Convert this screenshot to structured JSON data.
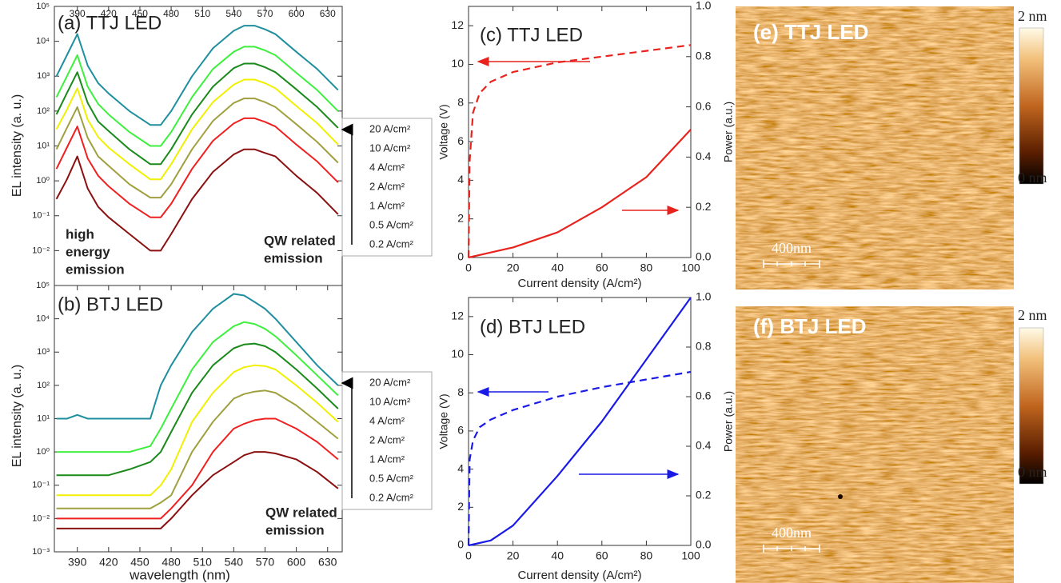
{
  "chart_data": [
    {
      "type": "line",
      "title": "(a) TTJ LED",
      "y_label": "EL intensity (a. u.)",
      "log_y": true,
      "x": [
        370,
        380,
        390,
        400,
        410,
        420,
        440,
        460,
        470,
        480,
        500,
        520,
        540,
        550,
        560,
        570,
        580,
        600,
        620,
        640
      ],
      "xlim": [
        368,
        644
      ],
      "xticks": [
        390,
        420,
        450,
        480,
        510,
        540,
        570,
        600,
        630
      ],
      "ylim": [
        0.001,
        100000
      ],
      "yticks": [
        {
          "value": 100000,
          "label": "10⁵"
        },
        {
          "value": 10000,
          "label": "10⁴"
        },
        {
          "value": 1000,
          "label": "10³"
        },
        {
          "value": 100,
          "label": "10²"
        },
        {
          "value": 10,
          "label": "10¹"
        },
        {
          "value": 1,
          "label": "10⁰"
        },
        {
          "value": 0.1,
          "label": "10⁻¹"
        },
        {
          "value": 0.01,
          "label": "10⁻²"
        }
      ],
      "annotations": [
        {
          "lines": [
            "high",
            "energy",
            "emission"
          ]
        },
        {
          "lines": [
            "QW related",
            "emission"
          ]
        }
      ],
      "series": [
        {
          "name": "20 A/cm²",
          "color": "#1f8f9f",
          "values": [
            1000,
            4000,
            16000,
            2000,
            630,
            320,
            100,
            40,
            40,
            100,
            1000,
            6300,
            20000,
            28000,
            28000,
            22000,
            16000,
            5000,
            1600,
            400
          ]
        },
        {
          "name": "10 A/cm²",
          "color": "#3ef03e",
          "values": [
            250,
            1000,
            4000,
            500,
            160,
            80,
            25,
            10,
            10,
            25,
            250,
            1600,
            5000,
            7000,
            7000,
            5500,
            4000,
            1250,
            400,
            100
          ]
        },
        {
          "name": "4 A/cm²",
          "color": "#1a8a1a",
          "values": [
            80,
            330,
            1300,
            170,
            50,
            27,
            8,
            3,
            3,
            8,
            80,
            500,
            1700,
            2300,
            2300,
            1800,
            1300,
            420,
            130,
            33
          ]
        },
        {
          "name": "2 A/cm²",
          "color": "#f0f000",
          "values": [
            30,
            110,
            450,
            57,
            18,
            9,
            3,
            1.1,
            1.1,
            3,
            30,
            180,
            570,
            800,
            800,
            630,
            450,
            140,
            45,
            11
          ]
        },
        {
          "name": "1 A/cm²",
          "color": "#a0a040",
          "values": [
            8,
            33,
            130,
            17,
            5,
            2.7,
            0.8,
            0.33,
            0.33,
            0.8,
            8,
            52,
            170,
            230,
            230,
            180,
            130,
            42,
            13,
            3.3
          ]
        },
        {
          "name": "0.5 A/cm²",
          "color": "#f02020",
          "values": [
            2.2,
            9,
            36,
            4.4,
            1.4,
            0.7,
            0.22,
            0.09,
            0.09,
            0.22,
            2.2,
            14,
            44,
            62,
            62,
            49,
            36,
            11,
            3.6,
            0.9
          ]
        },
        {
          "name": "0.2 A/cm²",
          "color": "#8b1010",
          "values": [
            0.3,
            1.1,
            5,
            0.6,
            0.18,
            0.09,
            0.03,
            0.01,
            0.01,
            0.03,
            0.3,
            1.8,
            5.7,
            8,
            8,
            6.3,
            5,
            1.4,
            0.45,
            0.11
          ]
        }
      ]
    },
    {
      "type": "line",
      "title": "(b) BTJ LED",
      "y_label": "EL intensity (a. u.)",
      "x_label": "wavelength (nm)",
      "log_y": true,
      "x": [
        370,
        380,
        390,
        400,
        410,
        420,
        440,
        460,
        470,
        480,
        500,
        520,
        540,
        550,
        560,
        570,
        580,
        600,
        620,
        640
      ],
      "xlim": [
        368,
        644
      ],
      "xticks": [
        390,
        420,
        450,
        480,
        510,
        540,
        570,
        600,
        630
      ],
      "ylim": [
        0.001,
        100000
      ],
      "yticks": [
        {
          "value": 100000,
          "label": "10⁵"
        },
        {
          "value": 10000,
          "label": "10⁴"
        },
        {
          "value": 1000,
          "label": "10³"
        },
        {
          "value": 100,
          "label": "10²"
        },
        {
          "value": 10,
          "label": "10¹"
        },
        {
          "value": 1,
          "label": "10⁰"
        },
        {
          "value": 0.1,
          "label": "10⁻¹"
        },
        {
          "value": 0.01,
          "label": "10⁻²"
        },
        {
          "value": 0.001,
          "label": "10⁻³"
        }
      ],
      "annotations": [
        {
          "lines": [
            "QW related",
            "emission"
          ]
        }
      ],
      "series": [
        {
          "name": "20 A/cm²",
          "color": "#1f8f9f",
          "values": [
            10,
            10,
            13,
            10,
            10,
            10,
            10,
            10,
            100,
            400,
            4000,
            20000,
            56000,
            50000,
            32000,
            20000,
            10000,
            2000,
            400,
            100
          ]
        },
        {
          "name": "10 A/cm²",
          "color": "#3ef03e",
          "values": [
            1,
            1,
            1,
            1,
            1,
            1,
            1,
            1.5,
            5,
            20,
            300,
            2000,
            6000,
            8000,
            7000,
            5000,
            3000,
            800,
            200,
            50
          ]
        },
        {
          "name": "4 A/cm²",
          "color": "#1a8a1a",
          "values": [
            0.2,
            0.2,
            0.2,
            0.2,
            0.2,
            0.2,
            0.3,
            0.5,
            1,
            4,
            60,
            400,
            1300,
            1700,
            1800,
            1500,
            1000,
            300,
            80,
            20
          ]
        },
        {
          "name": "2 A/cm²",
          "color": "#f0f000",
          "values": [
            0.05,
            0.05,
            0.05,
            0.05,
            0.05,
            0.05,
            0.05,
            0.05,
            0.1,
            0.3,
            8,
            60,
            250,
            350,
            400,
            380,
            300,
            100,
            30,
            8
          ]
        },
        {
          "name": "1 A/cm²",
          "color": "#a0a040",
          "values": [
            0.02,
            0.02,
            0.02,
            0.02,
            0.02,
            0.02,
            0.02,
            0.02,
            0.03,
            0.05,
            1,
            8,
            40,
            55,
            65,
            70,
            60,
            25,
            8,
            2.5
          ]
        },
        {
          "name": "0.5 A/cm²",
          "color": "#f02020",
          "values": [
            0.01,
            0.01,
            0.01,
            0.01,
            0.01,
            0.01,
            0.01,
            0.01,
            0.01,
            0.02,
            0.1,
            1,
            5,
            7,
            9,
            10,
            10,
            5,
            2,
            0.6
          ]
        },
        {
          "name": "0.2 A/cm²",
          "color": "#8b1010",
          "values": [
            0.005,
            0.005,
            0.005,
            0.005,
            0.005,
            0.005,
            0.005,
            0.005,
            0.005,
            0.01,
            0.05,
            0.2,
            0.5,
            0.8,
            1,
            1,
            0.9,
            0.6,
            0.25,
            0.08
          ]
        }
      ]
    },
    {
      "type": "line",
      "title": "(c) TTJ LED",
      "x_label": "Current density (A/cm²)",
      "y_label": "Voltage (V)",
      "y2_label": "Power (a.u.)",
      "xlim": [
        0,
        100
      ],
      "xticks": [
        0,
        20,
        40,
        60,
        80,
        100
      ],
      "ylim": [
        0,
        13
      ],
      "yticks": [
        0,
        2,
        4,
        6,
        8,
        10,
        12
      ],
      "y2lim": [
        0,
        1
      ],
      "y2ticks": [
        {
          "value": 0,
          "label": "0.0"
        },
        {
          "value": 0.2,
          "label": "0.2"
        },
        {
          "value": 0.4,
          "label": "0.4"
        },
        {
          "value": 0.6,
          "label": "0.6"
        },
        {
          "value": 0.8,
          "label": "0.8"
        },
        {
          "value": 1,
          "label": "1.0"
        }
      ],
      "series": [
        {
          "color": "#e8231e",
          "line_style": "dashed",
          "x": [
            0,
            0.5,
            2,
            5,
            10,
            20,
            40,
            60,
            80,
            100
          ],
          "values": [
            0,
            5,
            7.5,
            8.5,
            9.1,
            9.6,
            10.1,
            10.4,
            10.7,
            11
          ]
        },
        {
          "color": "#e8231e",
          "line_style": "solid",
          "axis": "y2",
          "x": [
            0,
            10,
            20,
            40,
            60,
            80,
            100
          ],
          "values": [
            0,
            0.02,
            0.04,
            0.1,
            0.2,
            0.32,
            0.51
          ]
        }
      ]
    },
    {
      "type": "line",
      "title": "(d) BTJ LED",
      "x_label": "Current density (A/cm²)",
      "y_label": "Voltage (V)",
      "y2_label": "Power (a.u.)",
      "xlim": [
        0,
        100
      ],
      "xticks": [
        0,
        20,
        40,
        60,
        80,
        100
      ],
      "ylim": [
        0,
        13
      ],
      "yticks": [
        0,
        2,
        4,
        6,
        8,
        10,
        12
      ],
      "y2lim": [
        0,
        1
      ],
      "y2ticks": [
        {
          "value": 0,
          "label": "0.0"
        },
        {
          "value": 0.2,
          "label": "0.2"
        },
        {
          "value": 0.4,
          "label": "0.4"
        },
        {
          "value": 0.6,
          "label": "0.6"
        },
        {
          "value": 0.8,
          "label": "0.8"
        },
        {
          "value": 1,
          "label": "1.0"
        }
      ],
      "series": [
        {
          "color": "#1a1ae6",
          "line_style": "dashed",
          "x": [
            0,
            0.5,
            2,
            5,
            10,
            20,
            40,
            60,
            80,
            100
          ],
          "values": [
            0,
            4.5,
            5.5,
            6.2,
            6.6,
            7.1,
            7.8,
            8.3,
            8.7,
            9.1
          ]
        },
        {
          "color": "#1a1ae6",
          "line_style": "solid",
          "axis": "y2",
          "x": [
            0,
            10,
            20,
            40,
            60,
            80,
            100
          ],
          "values": [
            0,
            0.02,
            0.08,
            0.28,
            0.5,
            0.75,
            1
          ]
        }
      ]
    }
  ],
  "afm_images": [
    {
      "title": "(e) TTJ LED",
      "scale_bar": "400nm",
      "colorbar_max": "2 nm",
      "colorbar_min": "0 nm"
    },
    {
      "title": "(f) BTJ LED",
      "scale_bar": "400nm",
      "colorbar_max": "2 nm",
      "colorbar_min": "0 nm"
    }
  ]
}
